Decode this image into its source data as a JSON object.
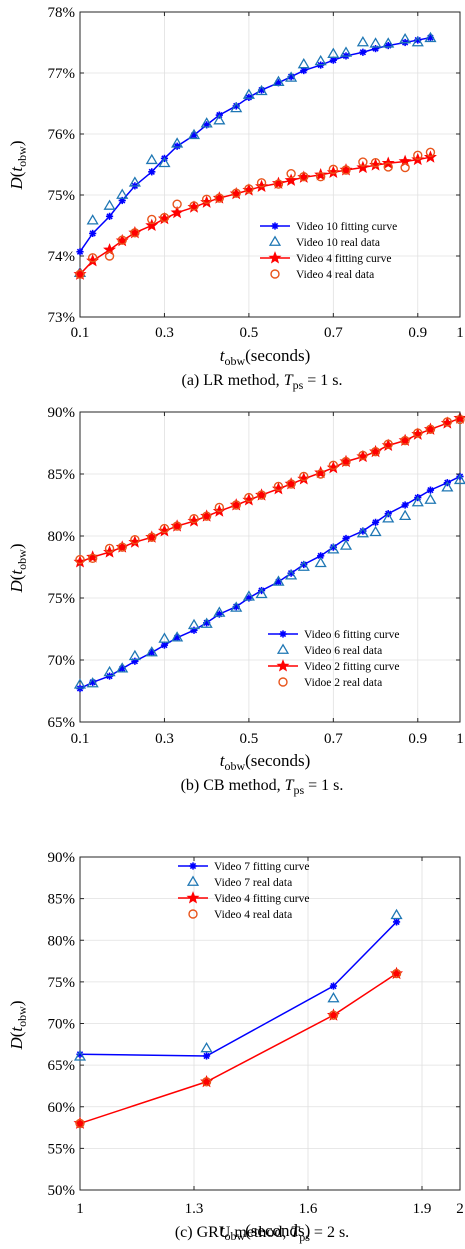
{
  "chart_data": [
    {
      "type": "line",
      "xlabel": "tobw(seconds)",
      "ylabel": "D(tobw)",
      "caption": "(a) LR method, Tps = 1 s.",
      "xlim": [
        0.1,
        1
      ],
      "ylim": [
        73,
        78
      ],
      "xticks": [
        0.1,
        0.3,
        0.5,
        0.7,
        0.9,
        1
      ],
      "xtick_labels": [
        "0.1",
        "0.3",
        "0.5",
        "0.7",
        "0.9",
        "1"
      ],
      "yticks": [
        73,
        74,
        75,
        76,
        77,
        78
      ],
      "ytick_labels": [
        "73%",
        "74%",
        "75%",
        "76%",
        "77%",
        "78%"
      ],
      "grid": true,
      "legend_position": "lower-right",
      "series": [
        {
          "name": "Video 10 fitting curve",
          "kind": "fit",
          "color": "#0000ff",
          "marker": "asterisk",
          "x": [
            0.1,
            0.13,
            0.17,
            0.2,
            0.23,
            0.27,
            0.3,
            0.33,
            0.37,
            0.4,
            0.43,
            0.47,
            0.5,
            0.53,
            0.57,
            0.6,
            0.63,
            0.67,
            0.7,
            0.73,
            0.77,
            0.8,
            0.83,
            0.87,
            0.9,
            0.93
          ],
          "y": [
            74.07,
            74.37,
            74.65,
            74.91,
            75.15,
            75.38,
            75.6,
            75.8,
            75.98,
            76.15,
            76.31,
            76.46,
            76.6,
            76.72,
            76.84,
            76.94,
            77.04,
            77.13,
            77.21,
            77.28,
            77.34,
            77.4,
            77.45,
            77.5,
            77.54,
            77.58
          ]
        },
        {
          "name": "Video 10 real data",
          "kind": "real",
          "color": "#1f77b4",
          "marker": "triangle",
          "x": [
            0.1,
            0.13,
            0.17,
            0.2,
            0.23,
            0.27,
            0.3,
            0.33,
            0.37,
            0.4,
            0.43,
            0.47,
            0.5,
            0.53,
            0.57,
            0.6,
            0.63,
            0.67,
            0.7,
            0.73,
            0.77,
            0.8,
            0.83,
            0.87,
            0.9,
            0.93
          ],
          "y": [
            73.72,
            74.58,
            74.82,
            75.0,
            75.2,
            75.57,
            75.52,
            75.84,
            75.98,
            76.17,
            76.22,
            76.42,
            76.64,
            76.7,
            76.85,
            76.92,
            77.14,
            77.19,
            77.31,
            77.33,
            77.5,
            77.48,
            77.48,
            77.55,
            77.5,
            77.57
          ]
        },
        {
          "name": "Video 4 fitting curve",
          "kind": "fit",
          "color": "#ff0000",
          "marker": "star",
          "x": [
            0.1,
            0.13,
            0.17,
            0.2,
            0.23,
            0.27,
            0.3,
            0.33,
            0.37,
            0.4,
            0.43,
            0.47,
            0.5,
            0.53,
            0.57,
            0.6,
            0.63,
            0.67,
            0.7,
            0.73,
            0.77,
            0.8,
            0.83,
            0.87,
            0.9,
            0.93
          ],
          "y": [
            73.7,
            73.92,
            74.1,
            74.25,
            74.38,
            74.5,
            74.61,
            74.71,
            74.8,
            74.88,
            74.95,
            75.02,
            75.08,
            75.14,
            75.19,
            75.24,
            75.29,
            75.33,
            75.37,
            75.41,
            75.45,
            75.49,
            75.52,
            75.55,
            75.58,
            75.62
          ]
        },
        {
          "name": "Video 4 real data",
          "kind": "real",
          "color": "#e8541b",
          "marker": "circle",
          "x": [
            0.1,
            0.13,
            0.17,
            0.2,
            0.23,
            0.27,
            0.3,
            0.33,
            0.37,
            0.4,
            0.43,
            0.47,
            0.5,
            0.53,
            0.57,
            0.6,
            0.63,
            0.67,
            0.7,
            0.73,
            0.77,
            0.8,
            0.83,
            0.87,
            0.9,
            0.93
          ],
          "y": [
            73.7,
            73.97,
            74.0,
            74.26,
            74.38,
            74.6,
            74.63,
            74.85,
            74.82,
            74.93,
            74.95,
            75.03,
            75.1,
            75.2,
            75.18,
            75.35,
            75.3,
            75.3,
            75.42,
            75.41,
            75.54,
            75.53,
            75.46,
            75.45,
            75.65,
            75.7
          ]
        }
      ]
    },
    {
      "type": "line",
      "xlabel": "tobw(seconds)",
      "ylabel": "D(tobw)",
      "caption": "(b) CB method, Tps = 1 s.",
      "xlim": [
        0.1,
        1
      ],
      "ylim": [
        65,
        90
      ],
      "xticks": [
        0.1,
        0.3,
        0.5,
        0.7,
        0.9,
        1
      ],
      "xtick_labels": [
        "0.1",
        "0.3",
        "0.5",
        "0.7",
        "0.9",
        "1"
      ],
      "yticks": [
        65,
        70,
        75,
        80,
        85,
        90
      ],
      "ytick_labels": [
        "65%",
        "70%",
        "75%",
        "80%",
        "85%",
        "90%"
      ],
      "grid": true,
      "legend_position": "lower-right",
      "series": [
        {
          "name": "Video 6 fitting curve",
          "kind": "fit",
          "color": "#0000ff",
          "marker": "asterisk",
          "x": [
            0.1,
            0.13,
            0.17,
            0.2,
            0.23,
            0.27,
            0.3,
            0.33,
            0.37,
            0.4,
            0.43,
            0.47,
            0.5,
            0.53,
            0.57,
            0.6,
            0.63,
            0.67,
            0.7,
            0.73,
            0.77,
            0.8,
            0.83,
            0.87,
            0.9,
            0.93,
            0.97,
            1.0
          ],
          "y": [
            67.7,
            68.2,
            68.7,
            69.3,
            69.9,
            70.6,
            71.2,
            71.8,
            72.4,
            73.0,
            73.7,
            74.3,
            75.0,
            75.6,
            76.3,
            77.0,
            77.7,
            78.4,
            79.1,
            79.8,
            80.4,
            81.1,
            81.8,
            82.5,
            83.1,
            83.7,
            84.3,
            84.8
          ]
        },
        {
          "name": "Video 6 real data",
          "kind": "real",
          "color": "#1f77b4",
          "marker": "triangle",
          "x": [
            0.1,
            0.13,
            0.17,
            0.2,
            0.23,
            0.27,
            0.3,
            0.33,
            0.37,
            0.4,
            0.43,
            0.47,
            0.5,
            0.53,
            0.57,
            0.6,
            0.63,
            0.67,
            0.7,
            0.73,
            0.77,
            0.8,
            0.83,
            0.87,
            0.9,
            0.93,
            0.97,
            1.0
          ],
          "y": [
            68.0,
            68.1,
            69.0,
            69.3,
            70.3,
            70.6,
            71.7,
            71.8,
            72.8,
            72.9,
            73.8,
            74.2,
            75.1,
            75.3,
            76.3,
            76.8,
            77.5,
            77.8,
            78.9,
            79.2,
            80.2,
            80.3,
            81.4,
            81.6,
            82.7,
            82.9,
            83.9,
            84.5
          ]
        },
        {
          "name": "Video 2 fitting curve",
          "kind": "fit",
          "color": "#ff0000",
          "marker": "star",
          "x": [
            0.1,
            0.13,
            0.17,
            0.2,
            0.23,
            0.27,
            0.3,
            0.33,
            0.37,
            0.4,
            0.43,
            0.47,
            0.5,
            0.53,
            0.57,
            0.6,
            0.63,
            0.67,
            0.7,
            0.73,
            0.77,
            0.8,
            0.83,
            0.87,
            0.9,
            0.93,
            0.97,
            1.0
          ],
          "y": [
            77.9,
            78.3,
            78.7,
            79.1,
            79.5,
            79.9,
            80.4,
            80.8,
            81.2,
            81.6,
            82.0,
            82.5,
            82.9,
            83.3,
            83.8,
            84.2,
            84.6,
            85.1,
            85.5,
            86.0,
            86.4,
            86.8,
            87.3,
            87.7,
            88.2,
            88.6,
            89.1,
            89.5
          ]
        },
        {
          "name": "Vidoe 2 real data",
          "kind": "real",
          "color": "#e8541b",
          "marker": "circle",
          "x": [
            0.1,
            0.13,
            0.17,
            0.2,
            0.23,
            0.27,
            0.3,
            0.33,
            0.37,
            0.4,
            0.43,
            0.47,
            0.5,
            0.53,
            0.57,
            0.6,
            0.63,
            0.67,
            0.7,
            0.73,
            0.77,
            0.8,
            0.83,
            0.87,
            0.9,
            0.93,
            0.97,
            1.0
          ],
          "y": [
            78.1,
            78.2,
            79.0,
            79.1,
            79.7,
            79.9,
            80.6,
            80.8,
            81.4,
            81.6,
            82.3,
            82.5,
            83.1,
            83.3,
            84.0,
            84.2,
            84.8,
            85.0,
            85.7,
            86.0,
            86.5,
            86.8,
            87.4,
            87.7,
            88.3,
            88.6,
            89.2,
            89.4
          ]
        }
      ]
    },
    {
      "type": "line",
      "xlabel": "tobw(seconds)",
      "ylabel": "D(tobw)",
      "caption": "(c) GRU method, Tps = 2 s.",
      "xlim": [
        1,
        2
      ],
      "ylim": [
        50,
        90
      ],
      "xticks": [
        1,
        1.3,
        1.6,
        1.9,
        2
      ],
      "xtick_labels": [
        "1",
        "1.3",
        "1.6",
        "1.9",
        "2"
      ],
      "yticks": [
        50,
        55,
        60,
        65,
        70,
        75,
        80,
        85,
        90
      ],
      "ytick_labels": [
        "50%",
        "55%",
        "60%",
        "65%",
        "70%",
        "75%",
        "80%",
        "85%",
        "90%"
      ],
      "grid": true,
      "legend_position": "top",
      "series": [
        {
          "name": "Video 7 fitting curve",
          "kind": "fit",
          "color": "#0000ff",
          "marker": "asterisk",
          "x": [
            1.0,
            1.333,
            1.667,
            1.833
          ],
          "y": [
            66.3,
            66.1,
            74.5,
            82.2
          ]
        },
        {
          "name": "Video 7 real data",
          "kind": "real",
          "color": "#1f77b4",
          "marker": "triangle",
          "x": [
            1.0,
            1.333,
            1.667,
            1.833
          ],
          "y": [
            66.0,
            67.0,
            73.0,
            83.0
          ]
        },
        {
          "name": "Video 4 fitting curve",
          "kind": "fit",
          "color": "#ff0000",
          "marker": "star",
          "x": [
            1.0,
            1.333,
            1.667,
            1.833
          ],
          "y": [
            58.0,
            63.0,
            71.0,
            76.0
          ]
        },
        {
          "name": "Video 4 real data",
          "kind": "real",
          "color": "#e8541b",
          "marker": "circle",
          "x": [
            1.0,
            1.333,
            1.667,
            1.833
          ],
          "y": [
            58.0,
            63.0,
            71.0,
            76.0
          ]
        }
      ]
    }
  ]
}
